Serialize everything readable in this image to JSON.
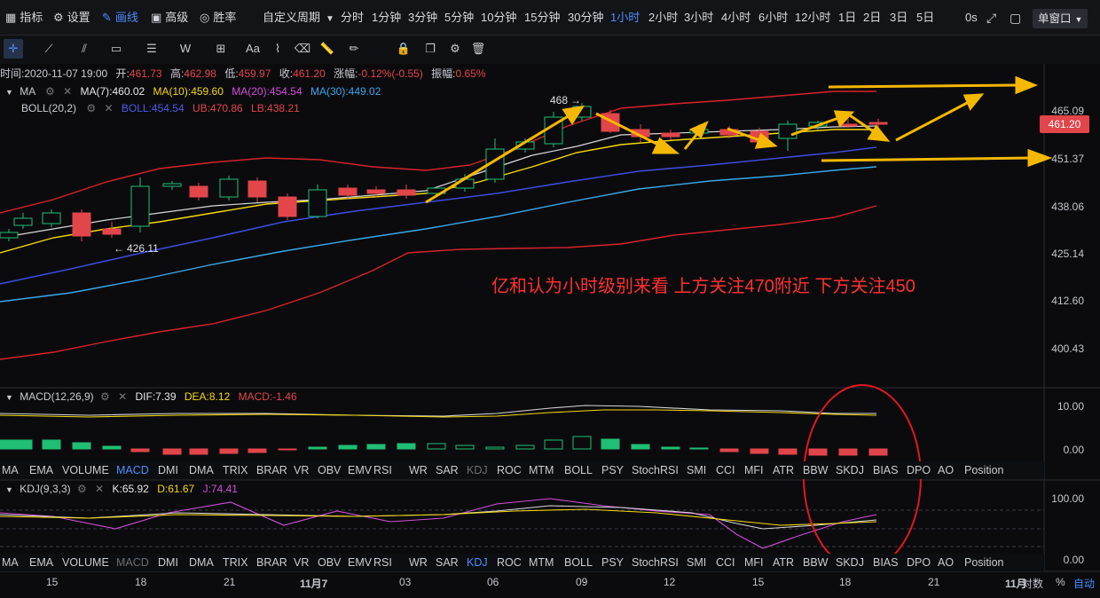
{
  "topbar": {
    "left_tools": [
      {
        "label": "指标",
        "icon": "indicator-icon"
      },
      {
        "label": "设置",
        "icon": "gear-icon"
      },
      {
        "label": "画线",
        "icon": "pen-icon"
      },
      {
        "label": "高级",
        "icon": "calendar-icon"
      },
      {
        "label": "胜率",
        "icon": "target-icon"
      }
    ],
    "custom_period_label": "自定义周期",
    "periods": [
      "分时",
      "1分钟",
      "3分钟",
      "5分钟",
      "10分钟",
      "15分钟",
      "30分钟",
      "1小时",
      "2小时",
      "3小时",
      "4小时",
      "6小时",
      "12小时",
      "1日",
      "2日",
      "3日",
      "5日"
    ],
    "active_period": "1小时",
    "right_value": "0s",
    "window_select": "单窗口"
  },
  "drawing_tools": [
    "crosshair-icon",
    "trendline-icon",
    "multiline-icon",
    "rectangle-icon",
    "fib-icon",
    "pattern-w-icon",
    "measure-icon",
    "text-icon",
    "brush-icon",
    "eraser-icon",
    "ruler-icon",
    "pencil-icon",
    "lock-icon",
    "copy-icon",
    "settings-icon",
    "trash-icon"
  ],
  "text_tool_label": "Aa",
  "pattern_tool_label": "W",
  "ohlc": {
    "time_label": "时间:2020-11-07 19:00",
    "open_label": "开:",
    "open": "461.73",
    "high_label": "高:",
    "high": "462.98",
    "low_label": "低:",
    "low": "459.97",
    "close_label": "收:",
    "close": "461.20",
    "change_label": "涨幅:",
    "change": "-0.12%(-0.55)",
    "amp_label": "振幅:",
    "amp": "0.65%"
  },
  "ma": {
    "name": "MA",
    "ma7": "MA(7):460.02",
    "ma10": "MA(10):459.60",
    "ma20": "MA(20):454.54",
    "ma30": "MA(30):449.02"
  },
  "boll": {
    "name": "BOLL(20,2)",
    "boll": "BOLL:454.54",
    "ub": "UB:470.86",
    "lb": "LB:438.21"
  },
  "price_axis": [
    "465.09",
    "451.37",
    "438.06",
    "425.14",
    "412.60",
    "400.43"
  ],
  "current_price": "461.20",
  "annotations": {
    "high_marker": "468",
    "low_marker": "426.11",
    "comment": "亿和认为小时级别来看 上方关注470附近 下方关注450"
  },
  "macd": {
    "name": "MACD(12,26,9)",
    "dif": "DIF:7.39",
    "dea": "DEA:8.12",
    "macd": "MACD:-1.46",
    "axis": [
      "10.00",
      "0.00"
    ]
  },
  "indicator_tabs": [
    "MA",
    "EMA",
    "VOLUME",
    "MACD",
    "DMI",
    "DMA",
    "TRIX",
    "BRAR",
    "VR",
    "OBV",
    "EMV",
    "RSI",
    "WR",
    "SAR",
    "KDJ",
    "ROC",
    "MTM",
    "BOLL",
    "PSY",
    "StochRSI",
    "SMI",
    "CCI",
    "MFI",
    "ATR",
    "BBW",
    "SKDJ",
    "BIAS",
    "DPO",
    "AO",
    "Position"
  ],
  "kdj": {
    "name": "KDJ(9,3,3)",
    "k": "K:65.92",
    "d": "D:61.67",
    "j": "J:74.41",
    "axis": [
      "100.00",
      "0.00"
    ]
  },
  "x_axis": [
    "15",
    "18",
    "21",
    "11月7",
    "03",
    "06",
    "09",
    "12",
    "15",
    "18",
    "21",
    "11月"
  ],
  "axis_mode": {
    "log": "对数",
    "percent": "%",
    "auto": "自动"
  },
  "colors": {
    "up": "#1fbf75",
    "down": "#e2454a",
    "ma7": "#e8e8e8",
    "ma10": "#f5d90a",
    "ma20": "#d14fd8",
    "ma30": "#3aa8e8",
    "boll_mid": "#3d4bd8",
    "boll_band": "#d9232b",
    "arrow": "#f5b800",
    "accent": "#4d8dff"
  }
}
